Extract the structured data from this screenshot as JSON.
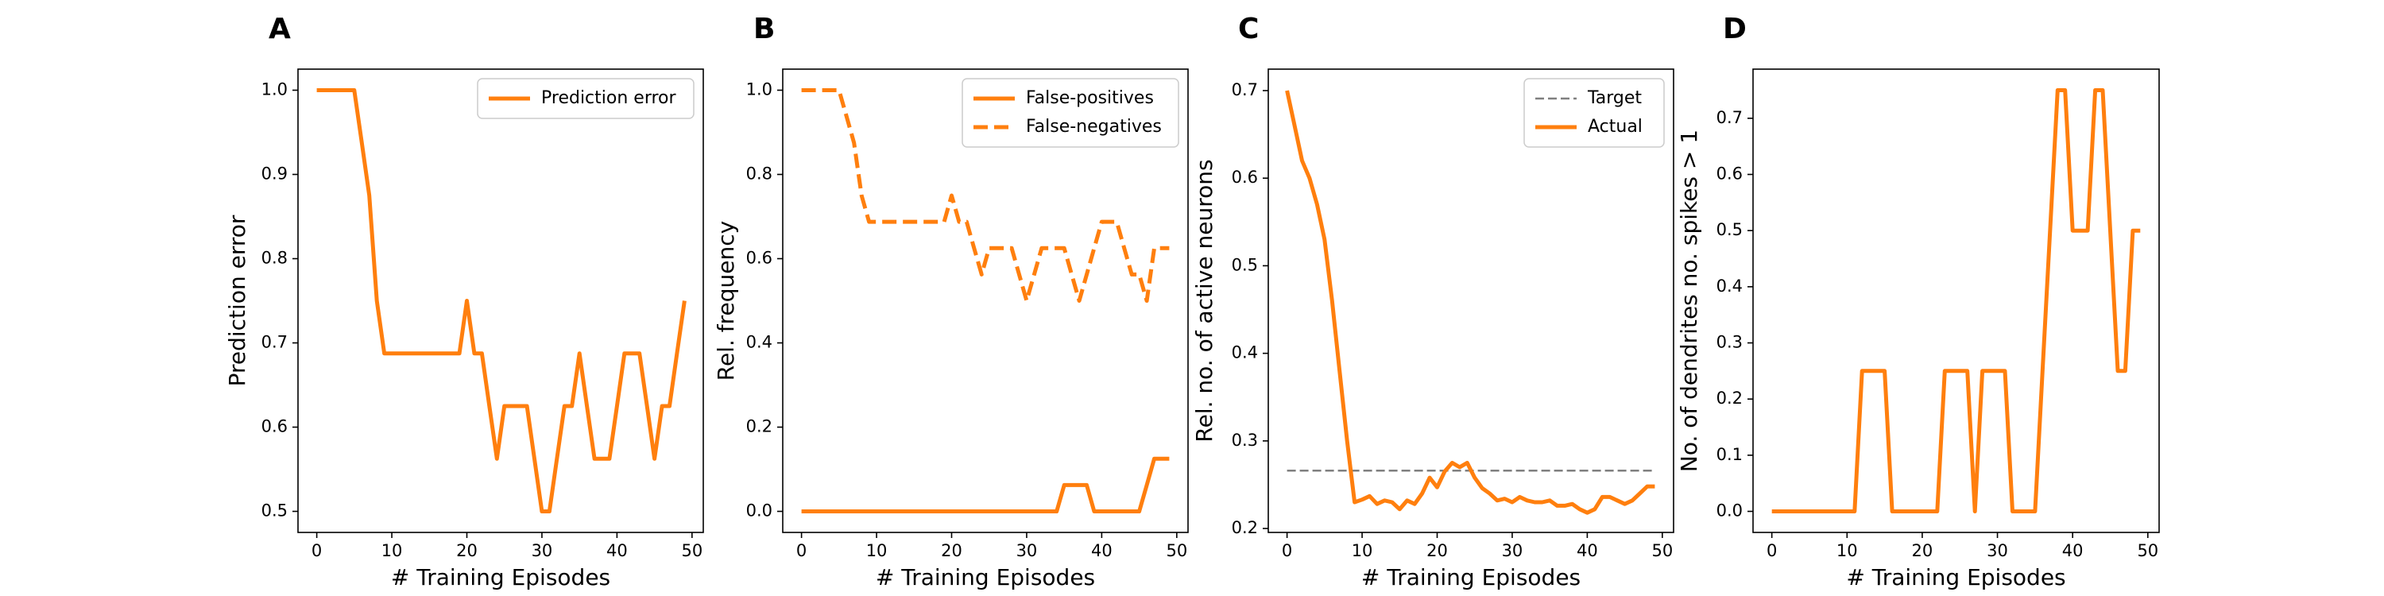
{
  "colors": {
    "series": "#ff7f0e",
    "target": "#808080",
    "axes": "#000000"
  },
  "chart_data": [
    {
      "panel": "A",
      "type": "line",
      "xlabel": "# Training Episodes",
      "ylabel": "Prediction error",
      "xlim": [
        -2.5,
        51.5
      ],
      "ylim": [
        0.475,
        1.025
      ],
      "xticks": [
        0,
        10,
        20,
        30,
        40,
        50
      ],
      "xtick_labels": [
        "0",
        "10",
        "20",
        "30",
        "40",
        "50"
      ],
      "yticks": [
        0.5,
        0.6,
        0.7,
        0.8,
        0.9,
        1.0
      ],
      "ytick_labels": [
        "0.5",
        "0.6",
        "0.7",
        "0.8",
        "0.9",
        "1.0"
      ],
      "legend": {
        "position": "top-right"
      },
      "series": [
        {
          "name": "Prediction error",
          "style": "solid",
          "x": [
            0,
            1,
            2,
            3,
            4,
            5,
            6,
            7,
            8,
            9,
            10,
            11,
            12,
            13,
            14,
            15,
            16,
            17,
            18,
            19,
            20,
            21,
            22,
            23,
            24,
            25,
            26,
            27,
            28,
            29,
            30,
            31,
            32,
            33,
            34,
            35,
            36,
            37,
            38,
            39,
            40,
            41,
            42,
            43,
            44,
            45,
            46,
            47,
            48,
            49
          ],
          "y": [
            1.0,
            1.0,
            1.0,
            1.0,
            1.0,
            1.0,
            0.9375,
            0.875,
            0.75,
            0.6875,
            0.6875,
            0.6875,
            0.6875,
            0.6875,
            0.6875,
            0.6875,
            0.6875,
            0.6875,
            0.6875,
            0.6875,
            0.75,
            0.6875,
            0.6875,
            0.625,
            0.5625,
            0.625,
            0.625,
            0.625,
            0.625,
            0.5625,
            0.5,
            0.5,
            0.5625,
            0.625,
            0.625,
            0.6875,
            0.625,
            0.5625,
            0.5625,
            0.5625,
            0.625,
            0.6875,
            0.6875,
            0.6875,
            0.625,
            0.5625,
            0.625,
            0.625,
            0.6875,
            0.75
          ]
        }
      ]
    },
    {
      "panel": "B",
      "type": "line",
      "xlabel": "# Training Episodes",
      "ylabel": "Rel. frequency",
      "xlim": [
        -2.5,
        51.5
      ],
      "ylim": [
        -0.05,
        1.05
      ],
      "xticks": [
        0,
        10,
        20,
        30,
        40,
        50
      ],
      "xtick_labels": [
        "0",
        "10",
        "20",
        "30",
        "40",
        "50"
      ],
      "yticks": [
        0.0,
        0.2,
        0.4,
        0.6,
        0.8,
        1.0
      ],
      "ytick_labels": [
        "0.0",
        "0.2",
        "0.4",
        "0.6",
        "0.8",
        "1.0"
      ],
      "legend": {
        "position": "top-right"
      },
      "series": [
        {
          "name": "False-positives",
          "style": "solid",
          "x": [
            0,
            1,
            2,
            3,
            4,
            5,
            6,
            7,
            8,
            9,
            10,
            11,
            12,
            13,
            14,
            15,
            16,
            17,
            18,
            19,
            20,
            21,
            22,
            23,
            24,
            25,
            26,
            27,
            28,
            29,
            30,
            31,
            32,
            33,
            34,
            35,
            36,
            37,
            38,
            39,
            40,
            41,
            42,
            43,
            44,
            45,
            46,
            47,
            48,
            49
          ],
          "y": [
            0,
            0,
            0,
            0,
            0,
            0,
            0,
            0,
            0,
            0,
            0,
            0,
            0,
            0,
            0,
            0,
            0,
            0,
            0,
            0,
            0,
            0,
            0,
            0,
            0,
            0,
            0,
            0,
            0,
            0,
            0,
            0,
            0,
            0,
            0,
            0.0625,
            0.0625,
            0.0625,
            0.0625,
            0,
            0,
            0,
            0,
            0,
            0,
            0,
            0.0625,
            0.125,
            0.125,
            0.125
          ]
        },
        {
          "name": "False-negatives",
          "style": "dashed",
          "x": [
            0,
            1,
            2,
            3,
            4,
            5,
            6,
            7,
            8,
            9,
            10,
            11,
            12,
            13,
            14,
            15,
            16,
            17,
            18,
            19,
            20,
            21,
            22,
            23,
            24,
            25,
            26,
            27,
            28,
            29,
            30,
            31,
            32,
            33,
            34,
            35,
            36,
            37,
            38,
            39,
            40,
            41,
            42,
            43,
            44,
            45,
            46,
            47,
            48,
            49
          ],
          "y": [
            1.0,
            1.0,
            1.0,
            1.0,
            1.0,
            1.0,
            0.9375,
            0.875,
            0.75,
            0.6875,
            0.6875,
            0.6875,
            0.6875,
            0.6875,
            0.6875,
            0.6875,
            0.6875,
            0.6875,
            0.6875,
            0.6875,
            0.75,
            0.6875,
            0.6875,
            0.625,
            0.5625,
            0.625,
            0.625,
            0.625,
            0.625,
            0.5625,
            0.5,
            0.5625,
            0.625,
            0.625,
            0.625,
            0.625,
            0.5625,
            0.5,
            0.5625,
            0.625,
            0.6875,
            0.6875,
            0.6875,
            0.625,
            0.5625,
            0.5625,
            0.5,
            0.625,
            0.625,
            0.625
          ]
        }
      ]
    },
    {
      "panel": "C",
      "type": "line",
      "xlabel": "# Training Episodes",
      "ylabel": "Rel. no. of active neurons",
      "xlim": [
        -2.5,
        51.5
      ],
      "ylim": [
        0.1955,
        0.7245
      ],
      "xticks": [
        0,
        10,
        20,
        30,
        40,
        50
      ],
      "xtick_labels": [
        "0",
        "10",
        "20",
        "30",
        "40",
        "50"
      ],
      "yticks": [
        0.2,
        0.3,
        0.4,
        0.5,
        0.6,
        0.7
      ],
      "ytick_labels": [
        "0.2",
        "0.3",
        "0.4",
        "0.5",
        "0.6",
        "0.7"
      ],
      "legend": {
        "position": "top-right"
      },
      "series": [
        {
          "name": "Target",
          "style": "dashed-thin",
          "x": [
            0,
            49
          ],
          "y": [
            0.266,
            0.266
          ]
        },
        {
          "name": "Actual",
          "style": "solid",
          "x": [
            0,
            1,
            2,
            3,
            4,
            5,
            6,
            7,
            8,
            9,
            10,
            11,
            12,
            13,
            14,
            15,
            16,
            17,
            18,
            19,
            20,
            21,
            22,
            23,
            24,
            25,
            26,
            27,
            28,
            29,
            30,
            31,
            32,
            33,
            34,
            35,
            36,
            37,
            38,
            39,
            40,
            41,
            42,
            43,
            44,
            45,
            46,
            47,
            48,
            49
          ],
          "y": [
            0.7,
            0.66,
            0.62,
            0.6,
            0.57,
            0.53,
            0.46,
            0.38,
            0.3,
            0.23,
            0.233,
            0.237,
            0.228,
            0.232,
            0.23,
            0.222,
            0.232,
            0.228,
            0.24,
            0.258,
            0.247,
            0.265,
            0.275,
            0.27,
            0.275,
            0.258,
            0.246,
            0.24,
            0.232,
            0.234,
            0.23,
            0.236,
            0.232,
            0.23,
            0.23,
            0.232,
            0.226,
            0.226,
            0.228,
            0.222,
            0.218,
            0.222,
            0.236,
            0.236,
            0.232,
            0.228,
            0.232,
            0.24,
            0.248,
            0.248
          ]
        }
      ]
    },
    {
      "panel": "D",
      "type": "line",
      "xlabel": "# Training Episodes",
      "ylabel": "No. of dendrites no. spikes > 1",
      "xlim": [
        -2.5,
        51.5
      ],
      "ylim": [
        -0.0375,
        0.7875
      ],
      "xticks": [
        0,
        10,
        20,
        30,
        40,
        50
      ],
      "xtick_labels": [
        "0",
        "10",
        "20",
        "30",
        "40",
        "50"
      ],
      "yticks": [
        0.0,
        0.1,
        0.2,
        0.3,
        0.4,
        0.5,
        0.6,
        0.7
      ],
      "ytick_labels": [
        "0.0",
        "0.1",
        "0.2",
        "0.3",
        "0.4",
        "0.5",
        "0.6",
        "0.7"
      ],
      "legend": null,
      "series": [
        {
          "name": "",
          "style": "solid",
          "x": [
            0,
            1,
            2,
            3,
            4,
            5,
            6,
            7,
            8,
            9,
            10,
            11,
            12,
            13,
            14,
            15,
            16,
            17,
            18,
            19,
            20,
            21,
            22,
            23,
            24,
            25,
            26,
            27,
            28,
            29,
            30,
            31,
            32,
            33,
            34,
            35,
            36,
            37,
            38,
            39,
            40,
            41,
            42,
            43,
            44,
            45,
            46,
            47,
            48,
            49
          ],
          "y": [
            0,
            0,
            0,
            0,
            0,
            0,
            0,
            0,
            0,
            0,
            0,
            0,
            0.25,
            0.25,
            0.25,
            0.25,
            0,
            0,
            0,
            0,
            0,
            0,
            0,
            0.25,
            0.25,
            0.25,
            0.25,
            0,
            0.25,
            0.25,
            0.25,
            0.25,
            0,
            0,
            0,
            0,
            0.25,
            0.5,
            0.75,
            0.75,
            0.5,
            0.5,
            0.5,
            0.75,
            0.75,
            0.5,
            0.25,
            0.25,
            0.5,
            0.5
          ]
        }
      ]
    }
  ]
}
